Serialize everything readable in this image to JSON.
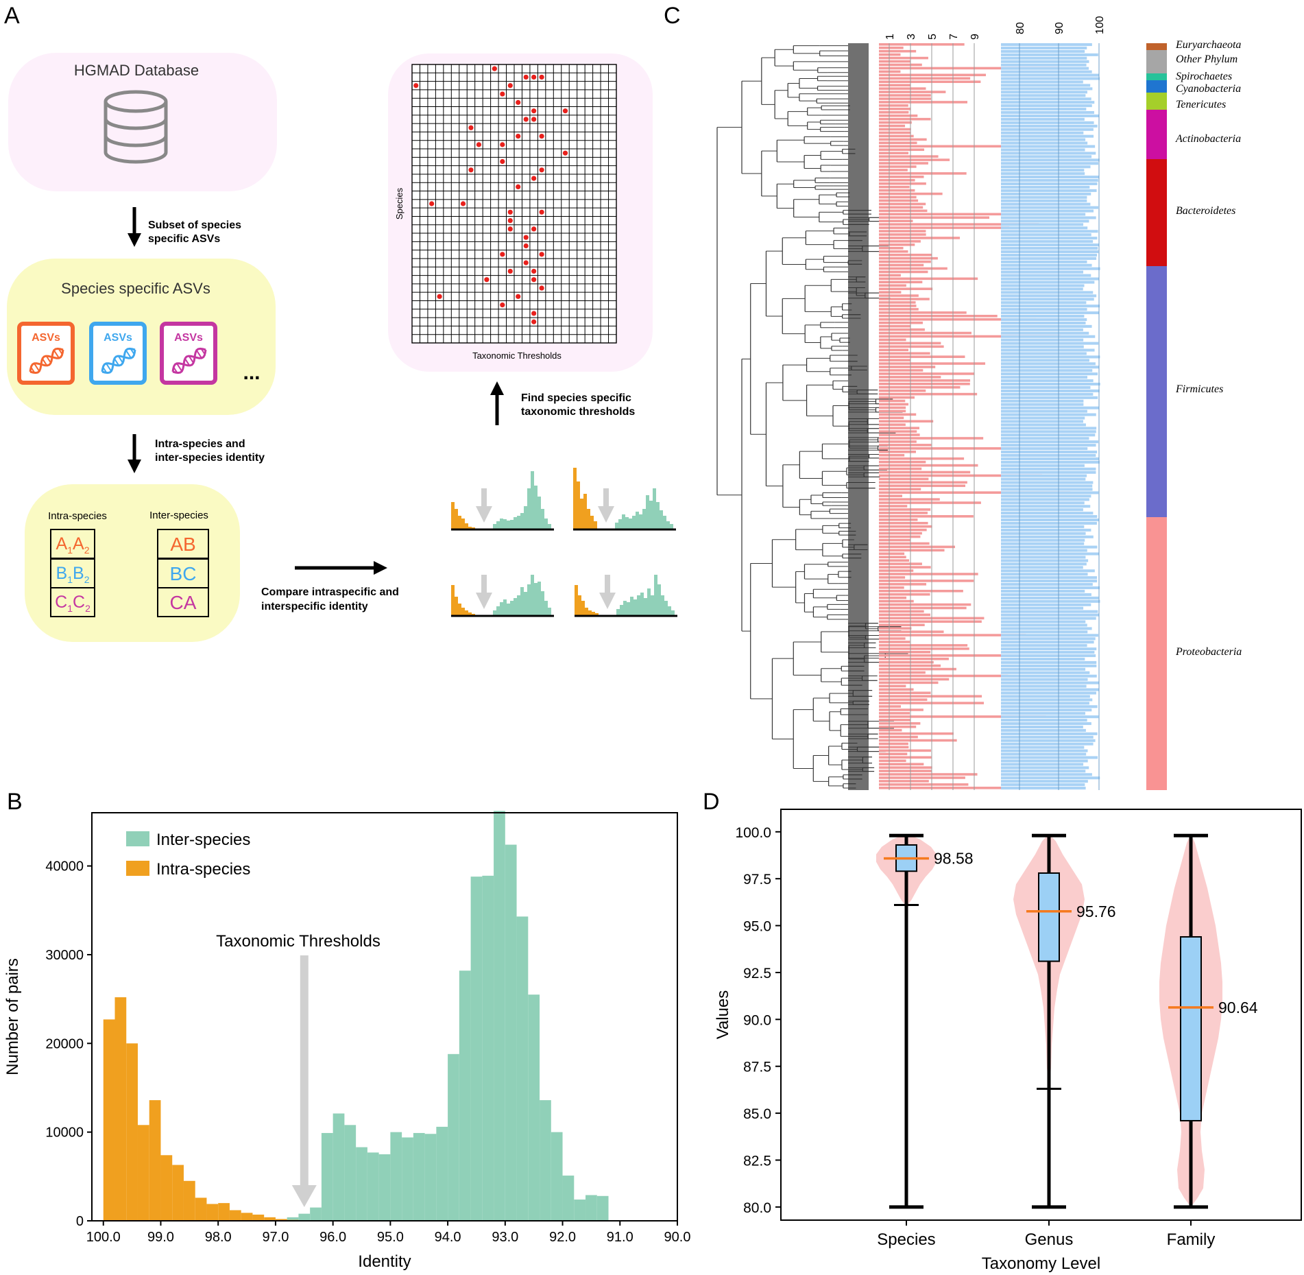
{
  "panels": {
    "a": "A",
    "b": "B",
    "c": "C",
    "d": "D"
  },
  "panel_a": {
    "database_label": "HGMAD Database",
    "step1": [
      "Subset of  species",
      "specific ASVs"
    ],
    "asv_box_title": "Species specific ASVs",
    "asv_card_label": "ASVs",
    "ellipsis": "...",
    "step2": [
      "Intra-species and",
      "inter-species identity"
    ],
    "intra_title": "Intra-species",
    "inter_title": "Inter-species",
    "intra_pairs": [
      {
        "a": "A",
        "i1": "1",
        "b": "A",
        "i2": "2",
        "color": "#f4662f"
      },
      {
        "a": "B",
        "i1": "1",
        "b": "B",
        "i2": "2",
        "color": "#3fa7ee"
      },
      {
        "a": "C",
        "i1": "1",
        "b": "C",
        "i2": "2",
        "color": "#c436a1"
      }
    ],
    "inter_pairs": [
      {
        "text": "AB",
        "color": "#f4662f"
      },
      {
        "text": "BC",
        "color": "#3fa7ee"
      },
      {
        "text": "CA",
        "color": "#c436a1"
      }
    ],
    "compare_label": [
      "Compare intraspecific and",
      "interspecific identity"
    ],
    "find_label": [
      "Find species specific",
      "taxonomic thresholds"
    ],
    "grid_y_label": "Species",
    "grid_x_label": "Taxonomic Thresholds",
    "colors": {
      "orange": "#f4662f",
      "blue": "#3fa7ee",
      "magenta": "#c436a1",
      "pink_bg": "#fdf0fb",
      "yellow_bg": "#fafac3",
      "intra": "#f0a01f",
      "inter": "#90d0b8"
    }
  },
  "chart_data": [
    {
      "id": "B",
      "type": "bar",
      "title": "",
      "xlabel": "Identity",
      "ylabel": "Number of pairs",
      "xlim": [
        100.2,
        90.0
      ],
      "ylim": [
        0,
        46000
      ],
      "x_ticks": [
        "100.0",
        "99.0",
        "98.0",
        "97.0",
        "96.0",
        "95.0",
        "94.0",
        "93.0",
        "92.0",
        "91.0",
        "90.0"
      ],
      "y_ticks": [
        "0",
        "10000",
        "20000",
        "30000",
        "40000"
      ],
      "annotation": "Taxonomic Thresholds",
      "annotation_x": 96.5,
      "bin_start": 99.8,
      "bin_width": 0.2,
      "series": [
        {
          "name": "Inter-species",
          "color": "#90d0b8",
          "values": [
            0,
            0,
            0,
            0,
            0,
            0,
            0,
            0,
            0,
            0,
            0,
            0,
            0,
            0,
            0,
            200,
            400,
            800,
            1500,
            9900,
            12100,
            10800,
            8300,
            7700,
            7500,
            10000,
            9400,
            9900,
            9800,
            10600,
            18800,
            28200,
            38800,
            38900,
            46200,
            42400,
            34300,
            25500,
            13600,
            10000,
            5100,
            2400,
            2900,
            2800,
            0,
            0
          ]
        },
        {
          "name": "Intra-species",
          "color": "#f0a01f",
          "values": [
            22700,
            25200,
            20000,
            10800,
            13600,
            7400,
            6300,
            4500,
            2600,
            1900,
            2000,
            1200,
            900,
            700,
            400,
            200,
            100,
            0,
            0,
            0,
            0,
            0,
            0,
            0,
            0,
            0,
            0,
            0,
            0,
            0,
            0,
            0,
            0,
            0,
            0,
            0,
            0,
            0,
            0,
            0,
            0,
            0,
            0,
            0,
            0,
            0
          ]
        }
      ]
    },
    {
      "id": "D",
      "type": "violin_box",
      "xlabel": "Taxonomy Level",
      "ylabel": "Values",
      "ylim": [
        79.3,
        101.2
      ],
      "y_ticks": [
        "100.0",
        "97.5",
        "95.0",
        "92.5",
        "90.0",
        "87.5",
        "85.0",
        "82.5",
        "80.0"
      ],
      "categories": [
        "Species",
        "Genus",
        "Family"
      ],
      "median_labels": [
        "98.58",
        "95.76",
        "90.64"
      ],
      "boxes": [
        {
          "category": "Species",
          "min": 80.0,
          "q1": 97.9,
          "median": 98.58,
          "q3": 99.3,
          "max": 99.8,
          "cap_low": 96.1
        },
        {
          "category": "Genus",
          "min": 80.0,
          "q1": 93.1,
          "median": 95.76,
          "q3": 97.8,
          "max": 99.8,
          "cap_low": 86.3
        },
        {
          "category": "Family",
          "min": 80.0,
          "q1": 84.6,
          "median": 90.64,
          "q3": 94.4,
          "max": 99.8,
          "cap_low": null
        }
      ],
      "violin_color": "#f9c4c4",
      "box_color": "#9cd0f5",
      "median_color": "#f57a1f"
    },
    {
      "id": "C",
      "type": "phylo_bars",
      "top_axis_1": [
        "1",
        "3",
        "5",
        "7",
        "9"
      ],
      "top_axis_2": [
        "80",
        "90",
        "100"
      ],
      "phyla": [
        {
          "name": "Euryarchaeota",
          "color": "#c0622b"
        },
        {
          "name": "Other Phylum",
          "color": "#a6a6a6"
        },
        {
          "name": "Spirochaetes",
          "color": "#27c29a"
        },
        {
          "name": "Cyanobacteria",
          "color": "#1f75d0"
        },
        {
          "name": "Tenericutes",
          "color": "#a5cf2a"
        },
        {
          "name": "Actinobacteria",
          "color": "#cc0fa1"
        },
        {
          "name": "Bacteroidetes",
          "color": "#d10d10"
        },
        {
          "name": "Firmicutes",
          "color": "#6b6ccb"
        },
        {
          "name": "Proteobacteria",
          "color": "#f99393"
        }
      ],
      "bar_color_1": "#f49a9a",
      "bar_color_2": "#a9d2f5"
    }
  ]
}
